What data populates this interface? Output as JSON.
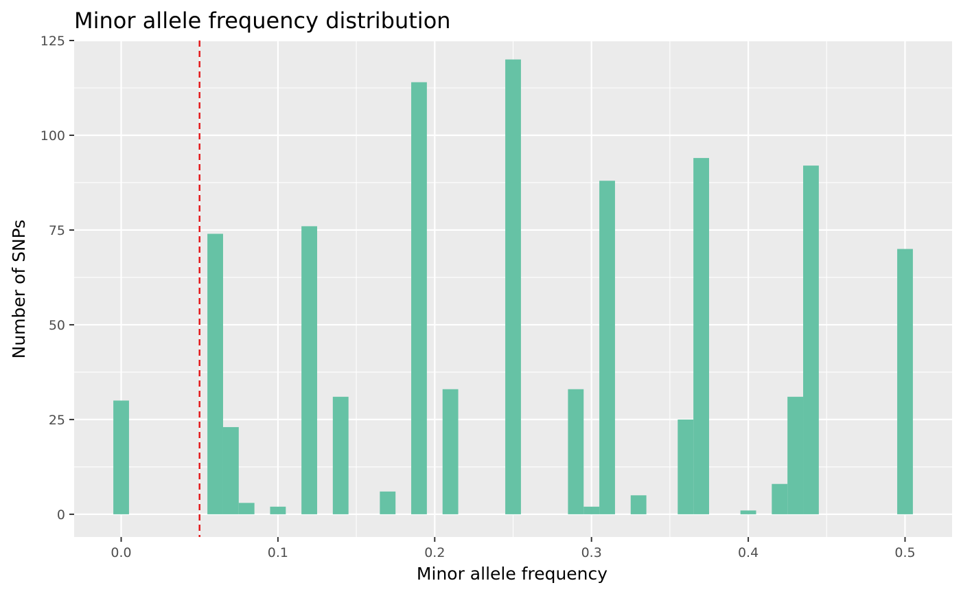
{
  "chart_data": {
    "type": "bar",
    "title": "Minor allele frequency distribution",
    "xlabel": "Minor allele frequency",
    "ylabel": "Number of SNPs",
    "xlim": [
      -0.03,
      0.53
    ],
    "ylim": [
      -6,
      125
    ],
    "x_ticks": [
      0.0,
      0.1,
      0.2,
      0.3,
      0.4,
      0.5
    ],
    "x_tick_labels": [
      "0.0",
      "0.1",
      "0.2",
      "0.3",
      "0.4",
      "0.5"
    ],
    "y_ticks": [
      0,
      25,
      50,
      75,
      100,
      125
    ],
    "y_tick_labels": [
      "0",
      "25",
      "50",
      "75",
      "100",
      "125"
    ],
    "bin_width": 0.01,
    "bin_centers": [
      0.0,
      0.06,
      0.07,
      0.08,
      0.1,
      0.12,
      0.14,
      0.17,
      0.19,
      0.21,
      0.25,
      0.29,
      0.3,
      0.31,
      0.33,
      0.36,
      0.37,
      0.4,
      0.42,
      0.43,
      0.44,
      0.5
    ],
    "counts": [
      30,
      74,
      23,
      3,
      2,
      76,
      31,
      6,
      114,
      33,
      120,
      33,
      2,
      88,
      5,
      25,
      94,
      1,
      8,
      31,
      92,
      70
    ],
    "threshold_line": {
      "x": 0.05,
      "color": "#e41a1c",
      "style": "dashed"
    },
    "grid": true,
    "legend": "none",
    "bar_color": "#66c2a5",
    "panel_color": "#ebebeb"
  }
}
